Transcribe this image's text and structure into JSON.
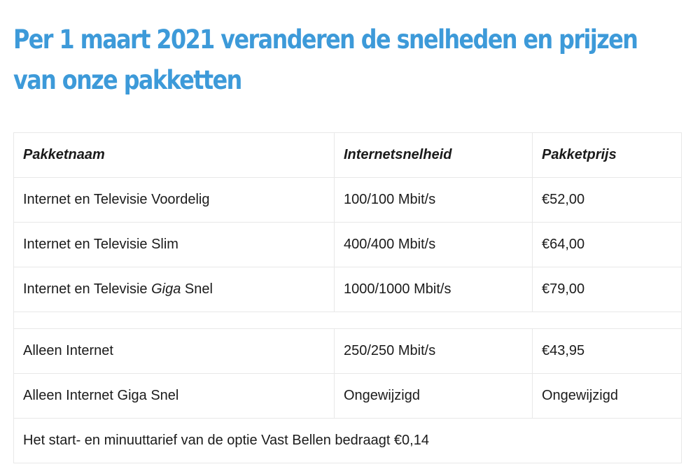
{
  "heading": {
    "line1": "Per 1 maart 2021 veranderen de snelheden en prijzen",
    "line2": "van onze pakketten"
  },
  "table": {
    "headers": [
      "Pakketnaam",
      "Internetsnelheid",
      "Pakketprijs"
    ],
    "rows_tv": [
      {
        "name_prefix": "Internet en Televisie Voordelig",
        "name_em": "",
        "name_suffix": "",
        "speed": "100/100 Mbit/s",
        "price": "€52,00"
      },
      {
        "name_prefix": "Internet en Televisie Slim",
        "name_em": "",
        "name_suffix": "",
        "speed": "400/400 Mbit/s",
        "price": "€64,00"
      },
      {
        "name_prefix": "Internet en Televisie ",
        "name_em": "Giga",
        "name_suffix": " Snel",
        "speed": "1000/1000 Mbit/s",
        "price": "€79,00"
      }
    ],
    "rows_internet": [
      {
        "name": "Alleen Internet",
        "speed": "250/250 Mbit/s",
        "price": "€43,95"
      },
      {
        "name": "Alleen Internet Giga Snel",
        "speed": "Ongewijzigd",
        "price": "Ongewijzigd"
      }
    ],
    "footnote": "Het start- en minuuttarief van de optie Vast Bellen bedraagt €0,14"
  }
}
